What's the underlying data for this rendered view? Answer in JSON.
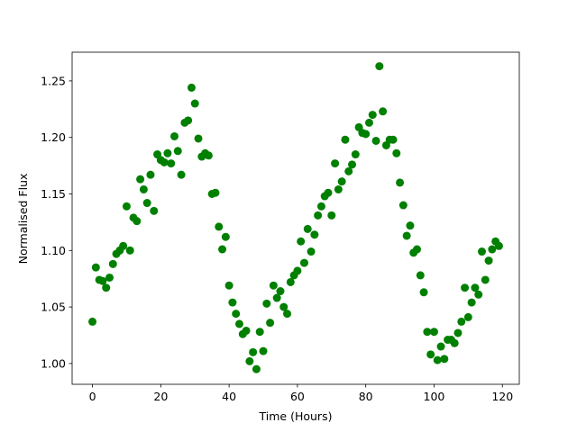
{
  "chart_data": {
    "type": "scatter",
    "xlabel": "Time (Hours)",
    "ylabel": "Normalised Flux",
    "color": "#008000",
    "x": [
      0,
      1,
      2,
      3,
      4,
      5,
      6,
      7,
      8,
      9,
      10,
      11,
      12,
      13,
      14,
      15,
      16,
      17,
      18,
      19,
      20,
      21,
      22,
      23,
      24,
      25,
      26,
      27,
      28,
      29,
      30,
      31,
      32,
      33,
      34,
      35,
      36,
      37,
      38,
      39,
      40,
      41,
      42,
      43,
      44,
      45,
      46,
      47,
      48,
      49,
      50,
      51,
      52,
      53,
      54,
      55,
      56,
      57,
      58,
      59,
      60,
      61,
      62,
      63,
      64,
      65,
      66,
      67,
      68,
      69,
      70,
      71,
      72,
      73,
      74,
      75,
      76,
      77,
      78,
      79,
      80,
      81,
      82,
      83,
      84,
      85,
      86,
      87,
      88,
      89,
      90,
      91,
      92,
      93,
      94,
      95,
      96,
      97,
      98,
      99,
      100,
      101,
      102,
      103,
      104,
      105,
      106,
      107,
      108,
      109,
      110,
      111,
      112,
      113,
      114,
      115,
      116,
      117,
      118,
      119
    ],
    "y": [
      1.037,
      1.085,
      1.074,
      1.073,
      1.067,
      1.076,
      1.088,
      1.097,
      1.1,
      1.104,
      1.139,
      1.1,
      1.129,
      1.126,
      1.163,
      1.154,
      1.142,
      1.167,
      1.135,
      1.185,
      1.18,
      1.178,
      1.186,
      1.177,
      1.201,
      1.188,
      1.167,
      1.213,
      1.215,
      1.244,
      1.23,
      1.199,
      1.183,
      1.186,
      1.184,
      1.15,
      1.151,
      1.121,
      1.101,
      1.112,
      1.069,
      1.054,
      1.044,
      1.035,
      1.026,
      1.029,
      1.002,
      1.01,
      0.995,
      1.028,
      1.011,
      1.053,
      1.036,
      1.069,
      1.058,
      1.064,
      1.05,
      1.044,
      1.072,
      1.078,
      1.082,
      1.108,
      1.089,
      1.119,
      1.099,
      1.114,
      1.131,
      1.139,
      1.148,
      1.151,
      1.131,
      1.177,
      1.154,
      1.161,
      1.198,
      1.17,
      1.176,
      1.185,
      1.209,
      1.204,
      1.203,
      1.213,
      1.22,
      1.197,
      1.263,
      1.223,
      1.193,
      1.198,
      1.198,
      1.186,
      1.16,
      1.14,
      1.113,
      1.122,
      1.098,
      1.101,
      1.078,
      1.063,
      1.028,
      1.008,
      1.028,
      1.003,
      1.015,
      1.004,
      1.021,
      1.021,
      1.018,
      1.027,
      1.037,
      1.067,
      1.041,
      1.054,
      1.067,
      1.061,
      1.099,
      1.074,
      1.091,
      1.101,
      1.108,
      1.104
    ],
    "xlim": [
      -5.95,
      124.95
    ],
    "ylim": [
      0.9816,
      1.2754
    ],
    "xticks": [
      0,
      20,
      40,
      60,
      80,
      100,
      120
    ],
    "yticks": [
      {
        "value": 1,
        "label": "1.00"
      },
      1.05,
      {
        "value": 1.1,
        "label": "1.10"
      },
      1.15,
      {
        "value": 1.2,
        "label": "1.20"
      },
      1.25
    ]
  }
}
